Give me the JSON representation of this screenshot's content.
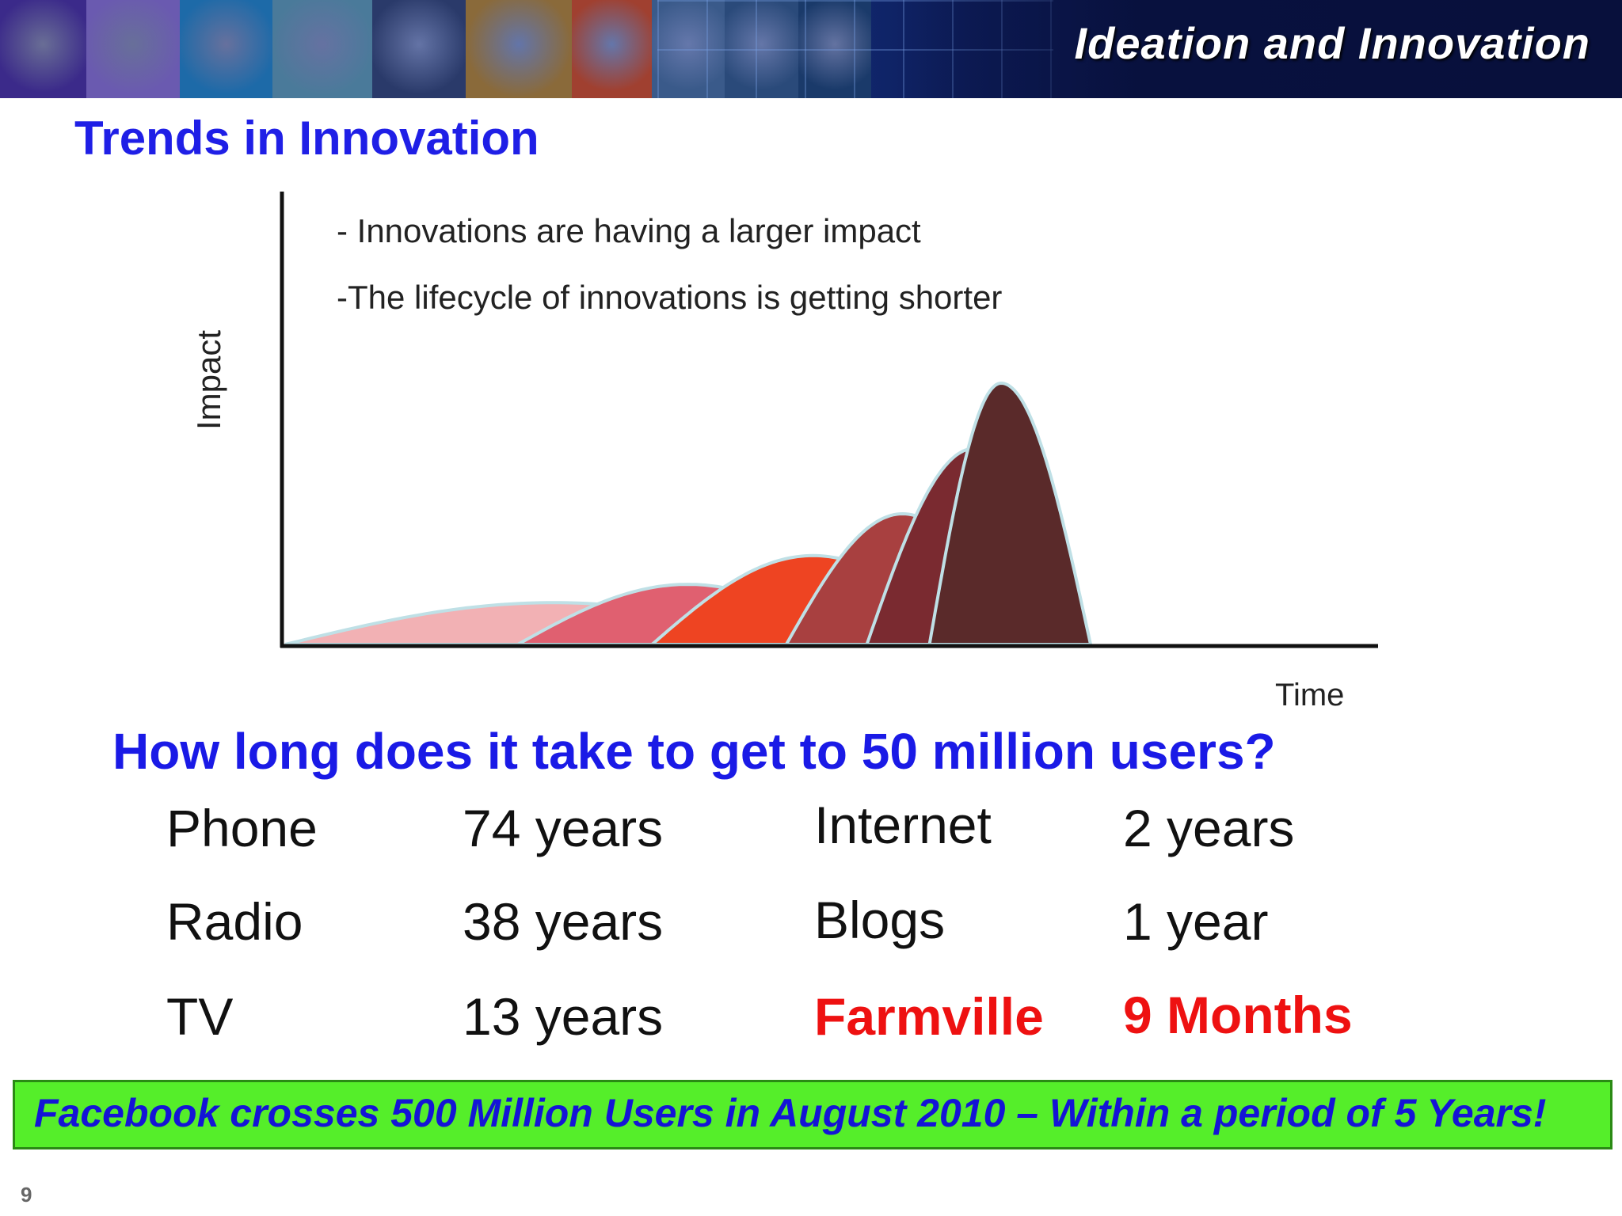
{
  "header": {
    "title": "Ideation and Innovation",
    "tile_colors": [
      "#3b2a8a",
      "#6a5ab0",
      "#1d6aa8",
      "#4a7a9a",
      "#2a3a6a",
      "#8a6a3a",
      "#a04030",
      "#3a5a8a",
      "#2a4a7a",
      "#1a3a6a"
    ]
  },
  "slide": {
    "title": "Trends in Innovation",
    "page_number": "9"
  },
  "chart_data": {
    "type": "area",
    "xlabel": "Time",
    "ylabel": "Impact",
    "annotations": [
      "- Innovations are having a larger impact",
      "-The lifecycle of innovations is getting shorter"
    ],
    "grid": false,
    "ylim": [
      0,
      1
    ],
    "series": [
      {
        "start": 0.0,
        "peak_x": 0.3,
        "end": 0.6,
        "peak": 0.16,
        "color": "#f2b1b4"
      },
      {
        "start": 0.26,
        "peak_x": 0.45,
        "end": 0.64,
        "peak": 0.23,
        "color": "#e06070"
      },
      {
        "start": 0.41,
        "peak_x": 0.59,
        "end": 0.77,
        "peak": 0.34,
        "color": "#ee4422"
      },
      {
        "start": 0.56,
        "peak_x": 0.69,
        "end": 0.82,
        "peak": 0.5,
        "color": "#a84040"
      },
      {
        "start": 0.65,
        "peak_x": 0.77,
        "end": 0.86,
        "peak": 0.75,
        "color": "#7a2a30"
      },
      {
        "start": 0.72,
        "peak_x": 0.8,
        "end": 0.9,
        "peak": 1.0,
        "color": "#5a2a2a"
      }
    ]
  },
  "question": "How long does it take to get to 50 million users?",
  "adoption": {
    "left": [
      {
        "name": "Phone",
        "time": "74 years"
      },
      {
        "name": "Radio",
        "time": "38 years"
      },
      {
        "name": "TV",
        "time": "13 years"
      }
    ],
    "right": [
      {
        "name": "Internet",
        "time": "2 years"
      },
      {
        "name": "Blogs",
        "time": "1 year"
      },
      {
        "name": "Farmville",
        "time": "9 Months"
      }
    ]
  },
  "callout": "Facebook crosses 500 Million Users  in August 2010 – Within a period of 5 Years!"
}
